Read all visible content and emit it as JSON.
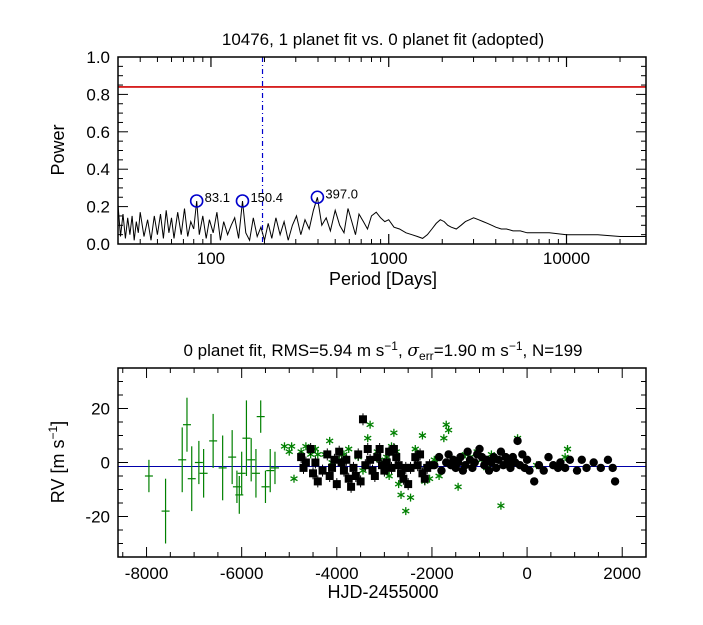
{
  "chart_data": [
    {
      "type": "line",
      "title": "10476,  1 planet fit vs. 0 planet fit (adopted)",
      "xlabel": "Period [Days]",
      "ylabel": "Power",
      "xscale": "log",
      "xlim": [
        30,
        28000
      ],
      "ylim": [
        0,
        1.0
      ],
      "x_ticks": [
        100,
        1000,
        10000
      ],
      "x_tick_labels": [
        "100",
        "1000",
        "10000"
      ],
      "y_ticks": [
        0,
        0.2,
        0.4,
        0.6,
        0.8,
        1.0
      ],
      "y_tick_labels": [
        "0.0",
        "0.2",
        "0.4",
        "0.6",
        "0.8",
        "1.0"
      ],
      "threshold_line": {
        "y": 0.84,
        "color": "#d00000"
      },
      "vertical_marker": {
        "x": 195,
        "color": "#0000cc",
        "style": "dash-dot"
      },
      "periodogram": {
        "x": [
          30,
          31,
          32,
          33,
          34,
          35,
          36,
          37,
          38,
          39,
          40,
          42,
          44,
          46,
          48,
          50,
          52,
          54,
          56,
          58,
          60,
          62,
          65,
          68,
          71,
          74,
          77,
          80,
          83.1,
          86,
          90,
          94,
          98,
          103,
          108,
          113,
          118,
          124,
          130,
          136,
          143,
          150.4,
          157,
          165,
          173,
          182,
          191,
          200,
          210,
          220,
          232,
          245,
          258,
          272,
          287,
          303,
          320,
          338,
          357,
          377,
          397,
          420,
          445,
          470,
          500,
          530,
          560,
          590,
          620,
          650,
          680,
          720,
          760,
          800,
          850,
          900,
          950,
          1000,
          1070,
          1150,
          1250,
          1350,
          1450,
          1550,
          1650,
          1750,
          1850,
          1950,
          2050,
          2150,
          2250,
          2400,
          2550,
          2700,
          2850,
          3000,
          3200,
          3400,
          3600,
          3800,
          4000,
          4300,
          4600,
          5000,
          5500,
          6000,
          7000,
          8000,
          10000,
          12000,
          15000,
          20000,
          28000
        ],
        "y": [
          0.21,
          0.04,
          0.16,
          0.03,
          0.14,
          0.05,
          0.15,
          0.02,
          0.12,
          0.06,
          0.17,
          0.04,
          0.13,
          0.02,
          0.15,
          0.05,
          0.16,
          0.03,
          0.18,
          0.06,
          0.14,
          0.03,
          0.17,
          0.05,
          0.19,
          0.04,
          0.12,
          0.08,
          0.23,
          0.05,
          0.15,
          0.03,
          0.13,
          0.06,
          0.17,
          0.02,
          0.12,
          0.05,
          0.1,
          0.14,
          0.03,
          0.23,
          0.06,
          0.02,
          0.14,
          0.04,
          0.09,
          0.02,
          0.11,
          0.03,
          0.14,
          0.05,
          0.12,
          0.02,
          0.1,
          0.15,
          0.05,
          0.13,
          0.08,
          0.18,
          0.25,
          0.1,
          0.14,
          0.07,
          0.18,
          0.1,
          0.06,
          0.19,
          0.12,
          0.05,
          0.16,
          0.12,
          0.08,
          0.15,
          0.17,
          0.14,
          0.12,
          0.13,
          0.09,
          0.08,
          0.06,
          0.05,
          0.04,
          0.03,
          0.05,
          0.08,
          0.11,
          0.13,
          0.12,
          0.1,
          0.09,
          0.08,
          0.1,
          0.12,
          0.13,
          0.14,
          0.13,
          0.12,
          0.11,
          0.1,
          0.09,
          0.08,
          0.08,
          0.07,
          0.07,
          0.06,
          0.06,
          0.06,
          0.05,
          0.05,
          0.05,
          0.04,
          0.04
        ]
      },
      "peaks": [
        {
          "x": 83.1,
          "y": 0.23,
          "label": "83.1"
        },
        {
          "x": 150.4,
          "y": 0.23,
          "label": "150.4"
        },
        {
          "x": 397.0,
          "y": 0.25,
          "label": "397.0"
        }
      ]
    },
    {
      "type": "scatter",
      "title_parts": {
        "prefix": "0 planet fit, RMS=5.94 m s",
        "exp1": "−1",
        "mid": ", ",
        "sigma": "σ",
        "err": "err",
        "mid2": "=1.90 m s",
        "exp2": "−1",
        "suffix": ", N=199"
      },
      "xlabel": "HJD-2455000",
      "ylabel": "RV [m s",
      "ylabel_exp": "−1",
      "ylabel_close": "]",
      "xlim": [
        -8600,
        2500
      ],
      "ylim": [
        -35,
        35
      ],
      "x_ticks": [
        -8000,
        -6000,
        -4000,
        -2000,
        0,
        2000
      ],
      "x_tick_labels": [
        "-8000",
        "-6000",
        "-4000",
        "-2000",
        "0",
        "2000"
      ],
      "y_ticks": [
        -20,
        0,
        20
      ],
      "y_tick_labels": [
        "-20",
        "0",
        "20"
      ],
      "zero_line": {
        "y": -1.5,
        "color": "#0000aa"
      },
      "series": [
        {
          "name": "green-errorbars",
          "marker": "cross",
          "color": "#008000",
          "points": [
            [
              -7950,
              -5,
              6
            ],
            [
              -7600,
              -18,
              12
            ],
            [
              -7250,
              1,
              12
            ],
            [
              -7150,
              14,
              10
            ],
            [
              -7050,
              -6,
              12
            ],
            [
              -6900,
              0,
              8
            ],
            [
              -6800,
              -4,
              9
            ],
            [
              -6600,
              8,
              10
            ],
            [
              -6400,
              -2,
              12
            ],
            [
              -6200,
              2,
              10
            ],
            [
              -6100,
              -9,
              6
            ],
            [
              -6050,
              -12,
              7
            ],
            [
              -6000,
              -4,
              8
            ],
            [
              -5900,
              9,
              14
            ],
            [
              -5800,
              1,
              8
            ],
            [
              -5700,
              -4,
              9
            ],
            [
              -5600,
              17,
              6
            ],
            [
              -5500,
              -9,
              6
            ],
            [
              -5400,
              -3,
              8
            ],
            [
              -5300,
              -2,
              6
            ]
          ]
        },
        {
          "name": "green-asterisks",
          "marker": "asterisk",
          "color": "#008000",
          "points": [
            [
              -5100,
              6
            ],
            [
              -5000,
              4
            ],
            [
              -4950,
              6
            ],
            [
              -4900,
              -6
            ],
            [
              -4750,
              4
            ],
            [
              -4650,
              6
            ],
            [
              -4550,
              3
            ],
            [
              -4450,
              5
            ],
            [
              -4400,
              3
            ],
            [
              -4250,
              3
            ],
            [
              -4150,
              8
            ],
            [
              -4100,
              0
            ],
            [
              -3950,
              1
            ],
            [
              -3850,
              3
            ],
            [
              -3750,
              5
            ],
            [
              -3550,
              2
            ],
            [
              -3450,
              -3
            ],
            [
              -3350,
              9
            ],
            [
              -3300,
              14
            ],
            [
              -3150,
              4
            ],
            [
              -3100,
              1
            ],
            [
              -2950,
              2
            ],
            [
              -2900,
              -5
            ],
            [
              -2850,
              6
            ],
            [
              -2800,
              11
            ],
            [
              -2750,
              4
            ],
            [
              -2700,
              -8
            ],
            [
              -2650,
              -12
            ],
            [
              -2550,
              -18
            ],
            [
              -2500,
              -8
            ],
            [
              -2450,
              -13
            ],
            [
              -2350,
              5
            ],
            [
              -2250,
              3
            ],
            [
              -2200,
              10
            ],
            [
              -2150,
              -7
            ],
            [
              -2050,
              -6
            ],
            [
              -1950,
              1
            ],
            [
              -1850,
              -5
            ],
            [
              -1750,
              9
            ],
            [
              -1700,
              14
            ],
            [
              -1650,
              12
            ],
            [
              -1550,
              1
            ],
            [
              -1450,
              -9
            ],
            [
              -1300,
              3
            ],
            [
              -1200,
              2
            ],
            [
              -1050,
              4
            ],
            [
              -950,
              1
            ],
            [
              -850,
              -2
            ],
            [
              -750,
              3
            ],
            [
              -550,
              -16
            ],
            [
              -200,
              9
            ],
            [
              200,
              -1
            ],
            [
              800,
              2
            ],
            [
              850,
              5
            ]
          ]
        },
        {
          "name": "black-squares",
          "marker": "square",
          "color": "#000000",
          "points": [
            [
              -4750,
              2
            ],
            [
              -4700,
              -2
            ],
            [
              -4650,
              0
            ],
            [
              -4550,
              5
            ],
            [
              -4500,
              -4
            ],
            [
              -4450,
              0
            ],
            [
              -4400,
              -7
            ],
            [
              -4300,
              -3
            ],
            [
              -4200,
              3
            ],
            [
              -4150,
              -5
            ],
            [
              -4100,
              -2
            ],
            [
              -4050,
              1
            ],
            [
              -4000,
              -8
            ],
            [
              -3950,
              4
            ],
            [
              -3900,
              0
            ],
            [
              -3850,
              -3
            ],
            [
              -3800,
              1
            ],
            [
              -3750,
              -6
            ],
            [
              -3700,
              -9
            ],
            [
              -3650,
              -2
            ],
            [
              -3600,
              -5
            ],
            [
              -3550,
              3
            ],
            [
              -3500,
              -7
            ],
            [
              -3450,
              16
            ],
            [
              -3400,
              -1
            ],
            [
              -3350,
              5
            ],
            [
              -3300,
              1
            ],
            [
              -3250,
              -3
            ],
            [
              -3200,
              -5
            ],
            [
              -3150,
              2
            ],
            [
              -3100,
              5
            ],
            [
              -3050,
              -1
            ],
            [
              -3000,
              -3
            ],
            [
              -2950,
              0
            ],
            [
              -2900,
              4
            ],
            [
              -2850,
              -2
            ],
            [
              -2800,
              5
            ],
            [
              -2750,
              2
            ],
            [
              -2700,
              -1
            ],
            [
              -2650,
              -4
            ],
            [
              -2600,
              -6
            ],
            [
              -2550,
              -2
            ],
            [
              -2500,
              -8
            ],
            [
              -2450,
              -2
            ],
            [
              -2350,
              2
            ],
            [
              -2300,
              -1
            ],
            [
              -2250,
              3
            ],
            [
              -2200,
              -4
            ],
            [
              -2150,
              -6
            ],
            [
              -2100,
              -2
            ],
            [
              -2050,
              -1
            ]
          ]
        },
        {
          "name": "black-circles",
          "marker": "circle",
          "color": "#000000",
          "points": [
            [
              -1950,
              -1
            ],
            [
              -1850,
              2
            ],
            [
              -1800,
              -3
            ],
            [
              -1700,
              0
            ],
            [
              -1650,
              3
            ],
            [
              -1600,
              -1
            ],
            [
              -1550,
              1
            ],
            [
              -1500,
              -2
            ],
            [
              -1450,
              0
            ],
            [
              -1400,
              2
            ],
            [
              -1350,
              -3
            ],
            [
              -1300,
              -1
            ],
            [
              -1250,
              4
            ],
            [
              -1200,
              1
            ],
            [
              -1150,
              -2
            ],
            [
              -1100,
              0
            ],
            [
              -1050,
              3
            ],
            [
              -1000,
              5
            ],
            [
              -950,
              2
            ],
            [
              -900,
              -1
            ],
            [
              -850,
              1
            ],
            [
              -800,
              -3
            ],
            [
              -750,
              0
            ],
            [
              -700,
              2
            ],
            [
              -650,
              -2
            ],
            [
              -600,
              1
            ],
            [
              -550,
              4
            ],
            [
              -500,
              -1
            ],
            [
              -450,
              2
            ],
            [
              -400,
              0
            ],
            [
              -350,
              -2
            ],
            [
              -300,
              2
            ],
            [
              -250,
              0
            ],
            [
              -200,
              8
            ],
            [
              -150,
              -1
            ],
            [
              -100,
              3
            ],
            [
              -50,
              -2
            ],
            [
              0,
              1
            ],
            [
              50,
              -3
            ],
            [
              150,
              -7
            ],
            [
              250,
              -1
            ],
            [
              350,
              -3
            ],
            [
              450,
              2
            ],
            [
              550,
              -1
            ],
            [
              650,
              -2
            ],
            [
              700,
              0
            ],
            [
              800,
              -2
            ],
            [
              900,
              1
            ],
            [
              1050,
              -3
            ],
            [
              1150,
              1
            ],
            [
              1250,
              -2
            ],
            [
              1400,
              0
            ],
            [
              1550,
              -2
            ],
            [
              1700,
              1
            ],
            [
              1800,
              -2
            ],
            [
              1850,
              -7
            ]
          ]
        }
      ]
    }
  ]
}
